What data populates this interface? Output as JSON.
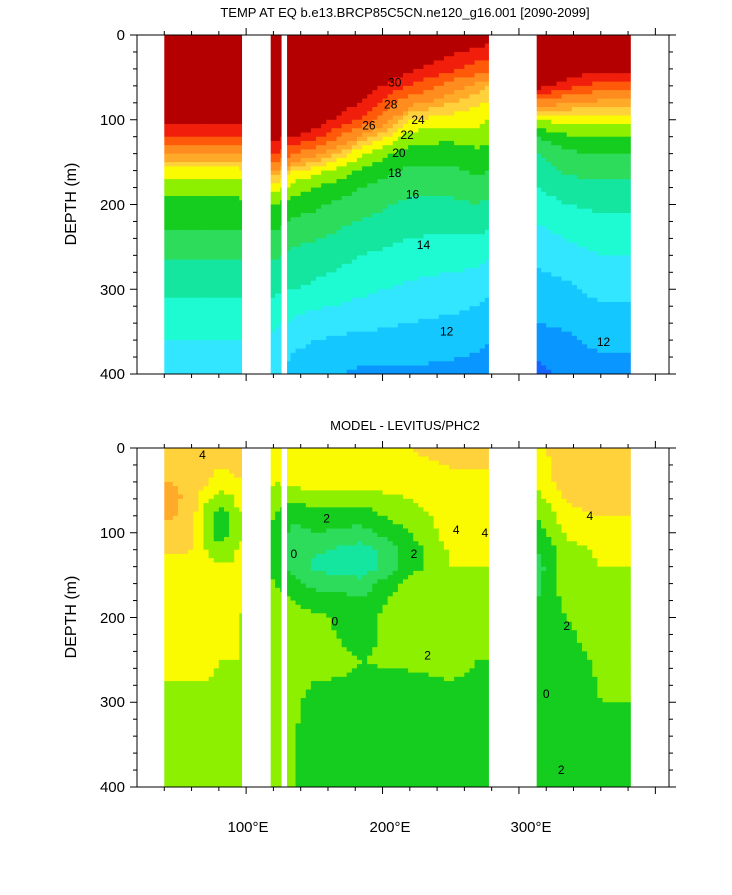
{
  "chart_data": [
    {
      "type": "heatmap",
      "title": "TEMP AT EQ b.e13.BRCP85C5CN.ne120_g16.001 [2090-2099]",
      "xlabel": "",
      "ylabel": "DEPTH (m)",
      "xlim": [
        20,
        410
      ],
      "ylim": [
        400,
        0
      ],
      "x_ticks": [
        100,
        200,
        300
      ],
      "x_tick_labels": [
        "100°E",
        "200°E",
        "300°E"
      ],
      "y_ticks": [
        0,
        100,
        200,
        300,
        400
      ],
      "y_tick_labels": [
        "0",
        "100",
        "200",
        "300",
        "400"
      ],
      "land_gaps_lon": [
        [
          97,
          118
        ],
        [
          126,
          130
        ],
        [
          278,
          313
        ],
        [
          382,
          410
        ]
      ],
      "palette": [
        "#1464ff",
        "#0a96ff",
        "#14c8ff",
        "#32e6ff",
        "#1efad2",
        "#14e6a0",
        "#2ddc5a",
        "#14cd1e",
        "#8cf000",
        "#fafa00",
        "#ffd23c",
        "#ffaa28",
        "#ff8c1e",
        "#ff5a0a",
        "#f01e0a",
        "#b40000"
      ],
      "level_boundaries": [
        11,
        12,
        13,
        14,
        15,
        16,
        17,
        18,
        19,
        20,
        21,
        22,
        24,
        26,
        28,
        30
      ],
      "profile_longitudes": [
        20,
        45,
        90,
        95,
        121,
        135,
        150,
        185,
        220,
        250,
        270,
        277,
        313,
        335,
        360,
        370
      ],
      "profile_depths": [
        0,
        40,
        60,
        80,
        100,
        120,
        140,
        160,
        180,
        200,
        250,
        300,
        350,
        400
      ],
      "temperature_profiles": [
        [
          31.5,
          31.5,
          31,
          30.5,
          29,
          26,
          22,
          19.5,
          18.3,
          17.8,
          16.4,
          15.2,
          14.2,
          13.3
        ],
        [
          31.5,
          31.5,
          31,
          30.5,
          29,
          26,
          22,
          19.5,
          18.3,
          17.8,
          16.4,
          15.2,
          14.2,
          13.3
        ],
        [
          31.5,
          31.5,
          31,
          30.5,
          29,
          26,
          22,
          19.5,
          18.3,
          17.8,
          16.4,
          15.2,
          14.2,
          13.3
        ],
        [
          31.5,
          31.5,
          31,
          30.5,
          29,
          26,
          22,
          19.5,
          18.3,
          17.8,
          16.4,
          15.2,
          14.2,
          13.3
        ],
        [
          31.5,
          31.5,
          31.2,
          30.8,
          30,
          28.5,
          26,
          22,
          19.5,
          18,
          16.4,
          15.2,
          14,
          13.3
        ],
        [
          31.5,
          31.5,
          31.2,
          30.8,
          30,
          28,
          24,
          20,
          18.5,
          17.5,
          16,
          15,
          13.5,
          12.5
        ],
        [
          31.5,
          31.4,
          31,
          30.5,
          29.5,
          27,
          22.5,
          19.5,
          18,
          17.2,
          15.8,
          14.8,
          13.2,
          12.2
        ],
        [
          31.4,
          30.5,
          29.5,
          28,
          25.5,
          21.5,
          19,
          17.8,
          17,
          16.4,
          15.2,
          14.2,
          13,
          11.8
        ],
        [
          31,
          28.5,
          26,
          22.5,
          20,
          18.5,
          17.5,
          16.7,
          16.2,
          15.8,
          14.8,
          13.8,
          12.8,
          11.8
        ],
        [
          30.2,
          26.5,
          23,
          21,
          19.5,
          18.3,
          17.4,
          16.8,
          16.3,
          15.8,
          14.6,
          13.6,
          12.6,
          11.7
        ],
        [
          29.8,
          25,
          21.5,
          20.2,
          19.3,
          18.5,
          17.8,
          17.2,
          16.6,
          16,
          14.6,
          13.4,
          12.4,
          11.6
        ],
        [
          29.5,
          24.5,
          21,
          20,
          19,
          18.3,
          17.6,
          17,
          16.4,
          15.8,
          14.4,
          13.2,
          12.2,
          11.5
        ],
        [
          31.5,
          31,
          29,
          23,
          19,
          17,
          16,
          15.5,
          15,
          14.5,
          13.4,
          12.6,
          11.8,
          10.6
        ],
        [
          31.3,
          30,
          27,
          22,
          19.5,
          17.8,
          16.8,
          16.2,
          15.6,
          15,
          13.8,
          12.8,
          12,
          11.3
        ],
        [
          31,
          28.5,
          25,
          21.5,
          19.5,
          18,
          17,
          16.3,
          15.7,
          15.2,
          14.2,
          13.3,
          12.4,
          11.6
        ],
        [
          31,
          28.5,
          25,
          21.5,
          19.5,
          18,
          17,
          16.3,
          15.7,
          15.2,
          14.2,
          13.3,
          12.4,
          11.6
        ]
      ],
      "contour_labels": [
        {
          "text": "30",
          "lon": 209,
          "depth": 56
        },
        {
          "text": "28",
          "lon": 206,
          "depth": 82
        },
        {
          "text": "26",
          "lon": 190,
          "depth": 107
        },
        {
          "text": "24",
          "lon": 226,
          "depth": 100
        },
        {
          "text": "22",
          "lon": 218,
          "depth": 118
        },
        {
          "text": "20",
          "lon": 212,
          "depth": 139
        },
        {
          "text": "18",
          "lon": 209,
          "depth": 163
        },
        {
          "text": "16",
          "lon": 222,
          "depth": 188
        },
        {
          "text": "14",
          "lon": 230,
          "depth": 248
        },
        {
          "text": "12",
          "lon": 247,
          "depth": 350
        },
        {
          "text": "12",
          "lon": 362,
          "depth": 362
        }
      ]
    },
    {
      "type": "heatmap",
      "title": "MODEL - LEVITUS/PHC2",
      "xlabel": "",
      "ylabel": "DEPTH (m)",
      "xlim": [
        20,
        410
      ],
      "ylim": [
        400,
        0
      ],
      "x_ticks": [
        100,
        200,
        300
      ],
      "x_tick_labels": [
        "100°E",
        "200°E",
        "300°E"
      ],
      "y_ticks": [
        0,
        100,
        200,
        300,
        400
      ],
      "y_tick_labels": [
        "0",
        "100",
        "200",
        "300",
        "400"
      ],
      "land_gaps_lon": [
        [
          97,
          118
        ],
        [
          126,
          130
        ],
        [
          278,
          313
        ],
        [
          382,
          410
        ]
      ],
      "palette": [
        "#14e6a0",
        "#2ddc5a",
        "#14cd1e",
        "#8cf000",
        "#fafa00",
        "#ffd23c",
        "#ffaa28"
      ],
      "level_boundaries": [
        0,
        1,
        2,
        3,
        4,
        5
      ],
      "profile_longitudes": [
        20,
        45,
        60,
        70,
        80,
        90,
        95,
        121,
        135,
        150,
        185,
        220,
        250,
        270,
        277,
        313,
        335,
        360,
        370
      ],
      "profile_depths": [
        0,
        40,
        60,
        80,
        100,
        120,
        140,
        160,
        180,
        200,
        250,
        300,
        350,
        400
      ],
      "difference_profiles": [
        [
          4.5,
          5,
          5.2,
          5.2,
          4.6,
          4.2,
          3.6,
          3.3,
          3.2,
          3.2,
          3.1,
          2.9,
          2.7,
          2.4
        ],
        [
          4.5,
          5,
          5.2,
          5.2,
          4.6,
          4.2,
          3.6,
          3.3,
          3.2,
          3.2,
          3.1,
          2.9,
          2.7,
          2.4
        ],
        [
          4.5,
          4.8,
          4.8,
          4.5,
          4.2,
          4,
          3.6,
          3.3,
          3.2,
          3.2,
          3.1,
          2.9,
          2.7,
          2.5
        ],
        [
          4.5,
          4.2,
          3.2,
          2.6,
          2.6,
          3,
          3.4,
          3.3,
          3.2,
          3.2,
          3.1,
          2.9,
          2.7,
          2.6
        ],
        [
          4.5,
          3.6,
          2.5,
          1.4,
          1.4,
          2.2,
          3.2,
          3.2,
          3.1,
          3.1,
          3,
          2.9,
          2.7,
          2.6
        ],
        [
          4.5,
          3.8,
          2.8,
          2.2,
          2.2,
          2.6,
          3.2,
          3.1,
          3.1,
          3,
          3,
          2.9,
          2.7,
          2.6
        ],
        [
          4.5,
          4,
          3.5,
          3,
          3,
          3.2,
          3.3,
          3.1,
          3.1,
          3,
          3,
          2.9,
          2.7,
          2.6
        ],
        [
          3.6,
          3,
          2.5,
          2,
          1.8,
          1.5,
          1.5,
          2,
          2.5,
          2.8,
          2.5,
          2.5,
          2.5,
          2.3
        ],
        [
          3.6,
          3.4,
          2.2,
          1.2,
          0.6,
          0.4,
          0.5,
          1.4,
          2,
          2.3,
          2.3,
          2.1,
          2,
          2
        ],
        [
          3.7,
          3.5,
          2.4,
          1.6,
          1,
          0.2,
          -0.2,
          0.6,
          1.6,
          2.2,
          2.2,
          1.8,
          1.8,
          1.9
        ],
        [
          3.8,
          3.5,
          2.4,
          1.5,
          0.6,
          -0.5,
          -0.8,
          0.4,
          1.2,
          1.6,
          2,
          1.9,
          1.8,
          1.8
        ],
        [
          4,
          3.6,
          3,
          2.6,
          2,
          1.4,
          1.5,
          2.4,
          2.8,
          2.8,
          2.1,
          1.7,
          1.6,
          1.6
        ],
        [
          4.3,
          3.8,
          3.6,
          3.4,
          3.5,
          3.2,
          3,
          3,
          2.8,
          2.6,
          2.2,
          1.8,
          1.6,
          1.6
        ],
        [
          4.3,
          3.8,
          3.7,
          3.5,
          3.6,
          3.4,
          3,
          2.8,
          2.6,
          2.4,
          2,
          1.8,
          1.6,
          1.6
        ],
        [
          4.3,
          3.8,
          3.7,
          3.5,
          3.6,
          3.4,
          3,
          2.8,
          2.6,
          2.4,
          2,
          1.8,
          1.6,
          1.6
        ],
        [
          3.8,
          3.4,
          2.6,
          2,
          1.5,
          1,
          0.5,
          0.5,
          1,
          1.6,
          1.8,
          1.6,
          1.4,
          1.4
        ],
        [
          4.4,
          4.5,
          4.1,
          3.6,
          3.2,
          2.6,
          2.6,
          2.8,
          2.3,
          2,
          1.8,
          1.6,
          1.6,
          1.6
        ],
        [
          4.4,
          5,
          4.6,
          4,
          3.5,
          3.2,
          3,
          2.9,
          2.6,
          2.3,
          2.1,
          2,
          1.8,
          1.8
        ],
        [
          4.4,
          5,
          4.6,
          4,
          3.5,
          3.2,
          3,
          2.9,
          2.6,
          2.3,
          2.1,
          2,
          1.8,
          1.8
        ]
      ],
      "contour_labels": [
        {
          "text": "4",
          "lon": 68,
          "depth": 8
        },
        {
          "text": "2",
          "lon": 159,
          "depth": 83
        },
        {
          "text": "0",
          "lon": 135,
          "depth": 125
        },
        {
          "text": "2",
          "lon": 223,
          "depth": 125
        },
        {
          "text": "4",
          "lon": 254,
          "depth": 97
        },
        {
          "text": "4",
          "lon": 275,
          "depth": 100
        },
        {
          "text": "4",
          "lon": 352,
          "depth": 80
        },
        {
          "text": "0",
          "lon": 165,
          "depth": 205
        },
        {
          "text": "2",
          "lon": 233,
          "depth": 245
        },
        {
          "text": "2",
          "lon": 335,
          "depth": 210
        },
        {
          "text": "0",
          "lon": 320,
          "depth": 290
        },
        {
          "text": "2",
          "lon": 331,
          "depth": 380
        }
      ]
    }
  ]
}
